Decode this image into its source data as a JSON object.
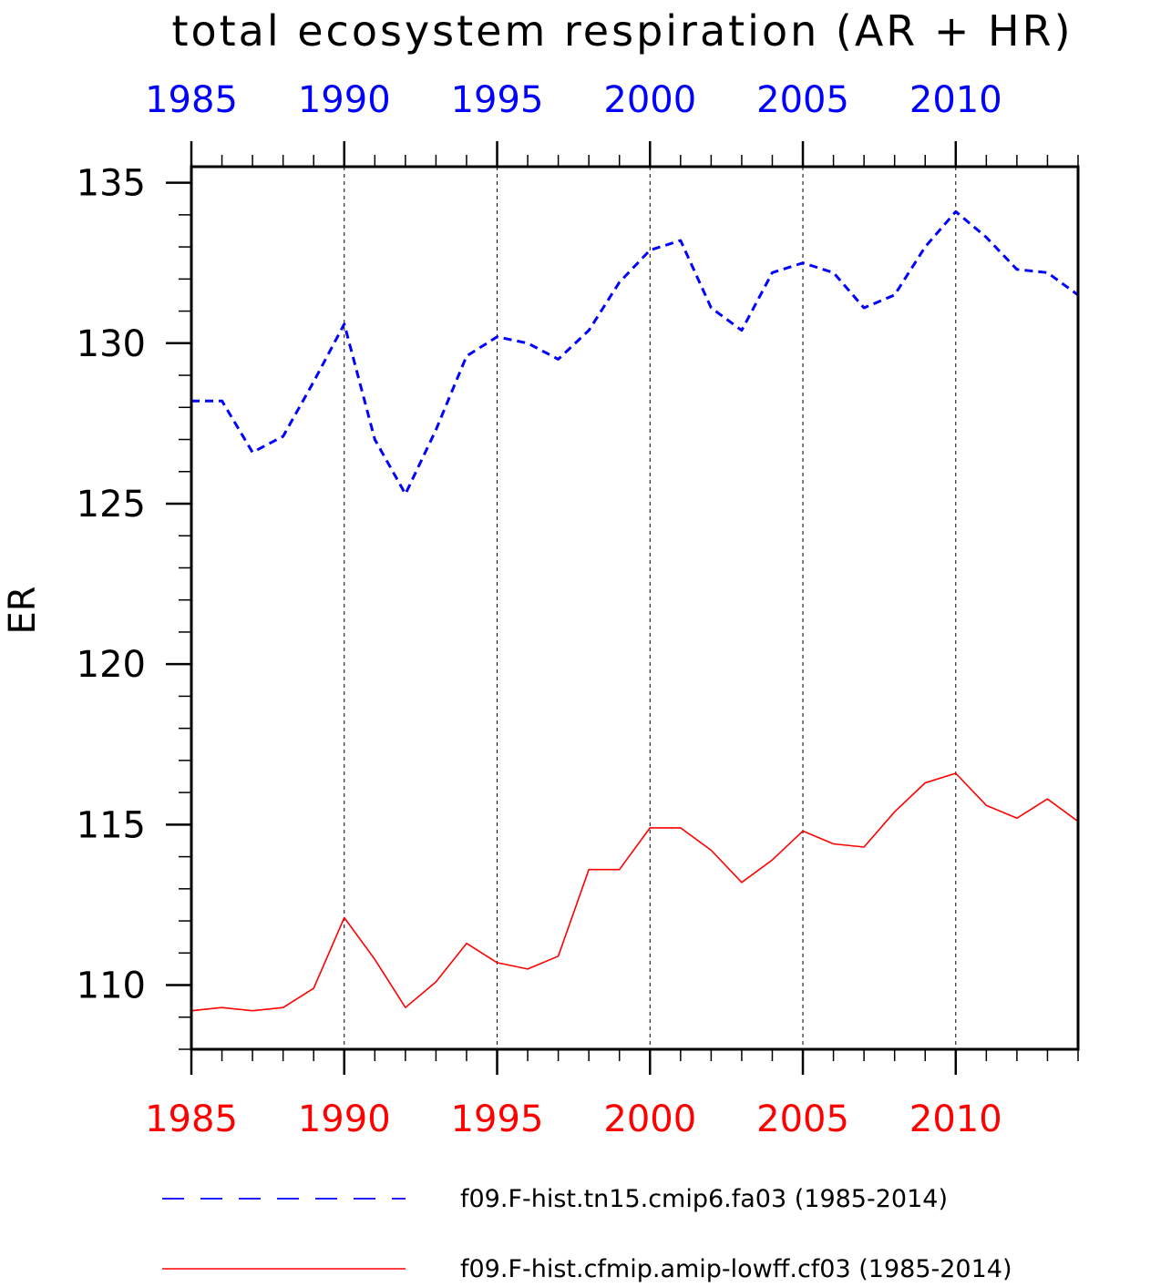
{
  "chart_data": {
    "type": "line",
    "title": "total ecosystem respiration (AR + HR)",
    "ylabel": "ER",
    "xlim": [
      1985,
      2014
    ],
    "ylim": [
      108,
      135.5
    ],
    "x_ticks": [
      1985,
      1990,
      1995,
      2000,
      2005,
      2010
    ],
    "x_tick_labels": [
      "1985",
      "1990",
      "1995",
      "2000",
      "2005",
      "2010"
    ],
    "y_ticks": [
      110,
      115,
      120,
      125,
      130,
      135
    ],
    "y_tick_labels": [
      "110",
      "115",
      "120",
      "125",
      "130",
      "135"
    ],
    "grid": "vertical dashed at major x ticks",
    "legend_position": "bottom",
    "top_axis_color": "#0000ff",
    "bottom_axis_color": "#ff0000",
    "x": [
      1985,
      1986,
      1987,
      1988,
      1989,
      1990,
      1991,
      1992,
      1993,
      1994,
      1995,
      1996,
      1997,
      1998,
      1999,
      2000,
      2001,
      2002,
      2003,
      2004,
      2005,
      2006,
      2007,
      2008,
      2009,
      2010,
      2011,
      2012,
      2013,
      2014
    ],
    "series": [
      {
        "name": "f09.F-hist.tn15.cmip6.fa03 (1985-2014)",
        "color": "#0000ff",
        "style": "dashed",
        "values": [
          128.2,
          128.2,
          126.6,
          127.1,
          128.8,
          130.6,
          127.0,
          125.3,
          127.3,
          129.6,
          130.2,
          130.0,
          129.5,
          130.4,
          131.9,
          132.9,
          133.2,
          131.1,
          130.4,
          132.2,
          132.5,
          132.2,
          131.1,
          131.5,
          133.0,
          134.1,
          133.3,
          132.3,
          132.2,
          131.5
        ]
      },
      {
        "name": "f09.F-hist.cfmip.amip-lowff.cf03 (1985-2014)",
        "color": "#ff0000",
        "style": "solid",
        "values": [
          109.2,
          109.3,
          109.2,
          109.3,
          109.9,
          112.1,
          110.8,
          109.3,
          110.1,
          111.3,
          110.7,
          110.5,
          110.9,
          113.6,
          113.6,
          114.9,
          114.9,
          114.2,
          113.2,
          113.9,
          114.8,
          114.4,
          114.3,
          115.4,
          116.3,
          116.6,
          115.6,
          115.2,
          115.8,
          115.1
        ]
      }
    ]
  }
}
